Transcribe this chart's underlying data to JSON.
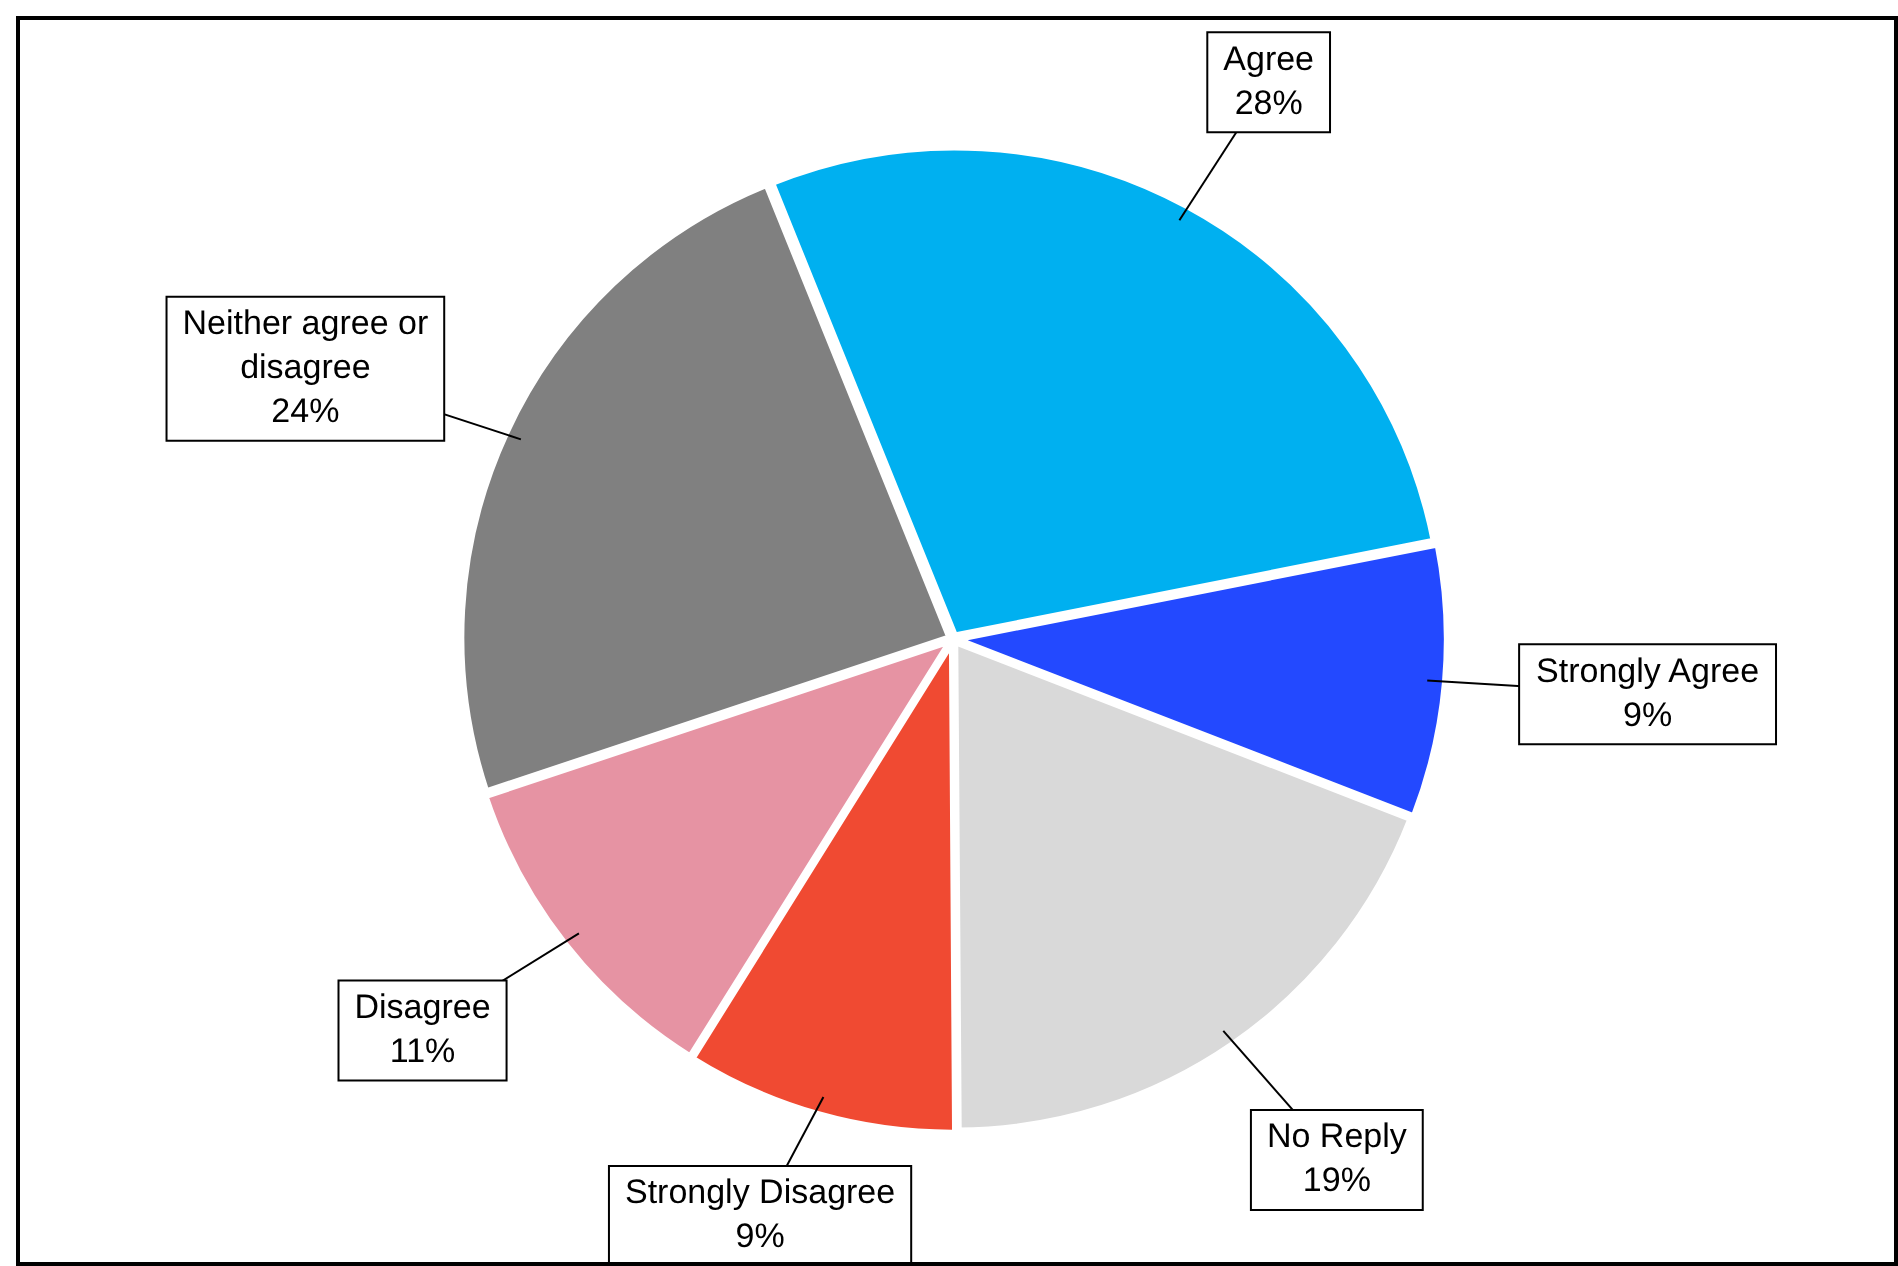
{
  "chart_data": {
    "type": "pie",
    "categories": [
      "Agree",
      "Strongly Agree",
      "No Reply",
      "Strongly Disagree",
      "Disagree",
      "Neither agree or disagree"
    ],
    "values": [
      28,
      9,
      19,
      9,
      11,
      24
    ],
    "value_labels": [
      "28%",
      "9%",
      "19%",
      "9%",
      "11%",
      "24%"
    ],
    "colors": [
      "#00b0f0",
      "#2349ff",
      "#d9d9d9",
      "#f04a32",
      "#e693a3",
      "#808080"
    ],
    "legend": false
  }
}
